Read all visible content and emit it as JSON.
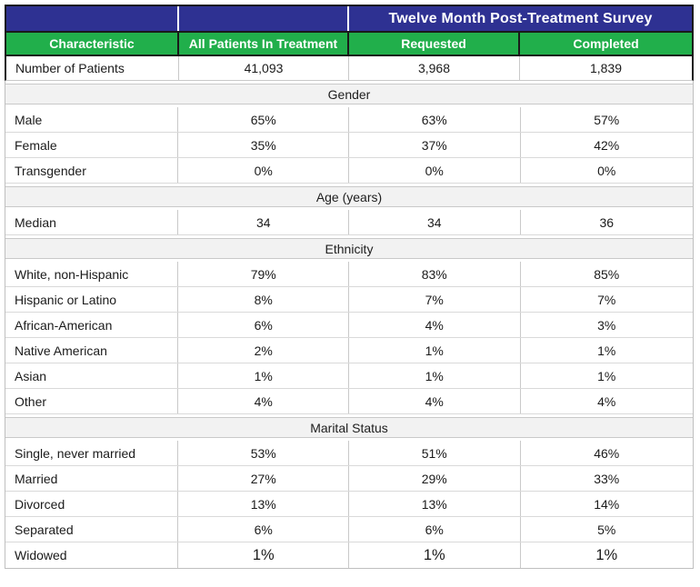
{
  "header": {
    "survey_title": "Twelve Month Post-Treatment Survey",
    "columns": [
      "Characteristic",
      "All Patients In Treatment",
      "Requested",
      "Completed"
    ]
  },
  "first_row": {
    "label": "Number of Patients",
    "values": [
      "41,093",
      "3,968",
      "1,839"
    ]
  },
  "sections": [
    {
      "title": "Gender",
      "rows": [
        {
          "label": "Male",
          "values": [
            "65%",
            "63%",
            "57%"
          ]
        },
        {
          "label": "Female",
          "values": [
            "35%",
            "37%",
            "42%"
          ]
        },
        {
          "label": "Transgender",
          "values": [
            "0%",
            "0%",
            "0%"
          ]
        }
      ]
    },
    {
      "title": "Age (years)",
      "rows": [
        {
          "label": "Median",
          "values": [
            "34",
            "34",
            "36"
          ]
        }
      ]
    },
    {
      "title": "Ethnicity",
      "rows": [
        {
          "label": "White, non-Hispanic",
          "values": [
            "79%",
            "83%",
            "85%"
          ]
        },
        {
          "label": "Hispanic or Latino",
          "values": [
            "8%",
            "7%",
            "7%"
          ]
        },
        {
          "label": "African-American",
          "values": [
            "6%",
            "4%",
            "3%"
          ]
        },
        {
          "label": "Native American",
          "values": [
            "2%",
            "1%",
            "1%"
          ]
        },
        {
          "label": "Asian",
          "values": [
            "1%",
            "1%",
            "1%"
          ]
        },
        {
          "label": "Other",
          "values": [
            "4%",
            "4%",
            "4%"
          ]
        }
      ]
    },
    {
      "title": "Marital Status",
      "rows": [
        {
          "label": "Single, never married",
          "values": [
            "53%",
            "51%",
            "46%"
          ]
        },
        {
          "label": "Married",
          "values": [
            "27%",
            "29%",
            "33%"
          ]
        },
        {
          "label": "Divorced",
          "values": [
            "13%",
            "13%",
            "14%"
          ]
        },
        {
          "label": "Separated",
          "values": [
            "6%",
            "6%",
            "5%"
          ]
        },
        {
          "label": "Widowed",
          "values": [
            "1%",
            "1%",
            "1%"
          ],
          "emphasis": true
        }
      ]
    }
  ],
  "colors": {
    "navy_header": "#2E3192",
    "green_header": "#21AF4B",
    "dark_border": "#1A1A1A",
    "section_background": "#F2F2F2",
    "light_border": "#C9C9C9",
    "body_text": "#1B1B1B"
  }
}
